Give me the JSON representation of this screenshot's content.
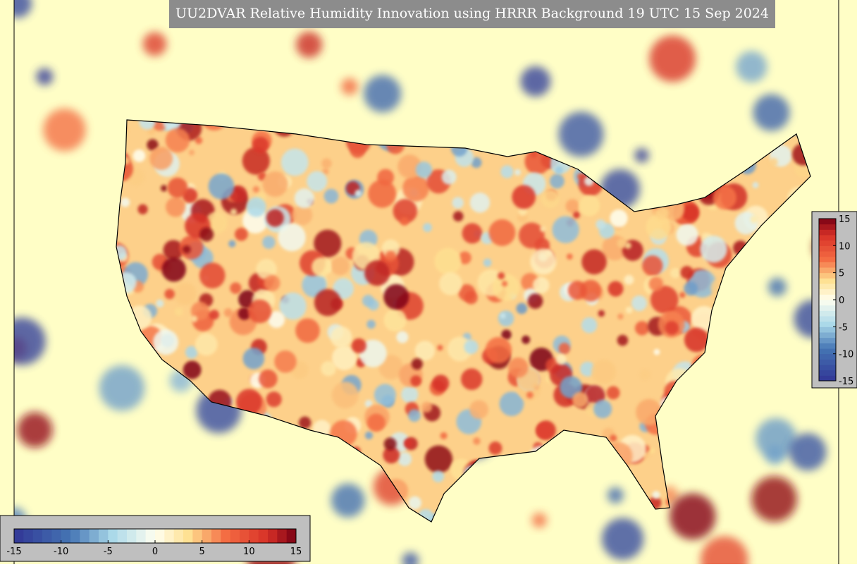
{
  "title": "UU2DVAR Relative Humidity Innovation using HRRR Background 19 UTC 15 Sep 2024",
  "colorbar_bottom": {
    "range": [
      -15,
      15
    ],
    "ticks": [
      -15,
      -10,
      -5,
      0,
      5,
      10,
      15
    ]
  },
  "colorbar_right": {
    "range": [
      -15,
      15
    ],
    "ticks": [
      15,
      10,
      5,
      0,
      -5,
      -10,
      -15
    ]
  }
}
